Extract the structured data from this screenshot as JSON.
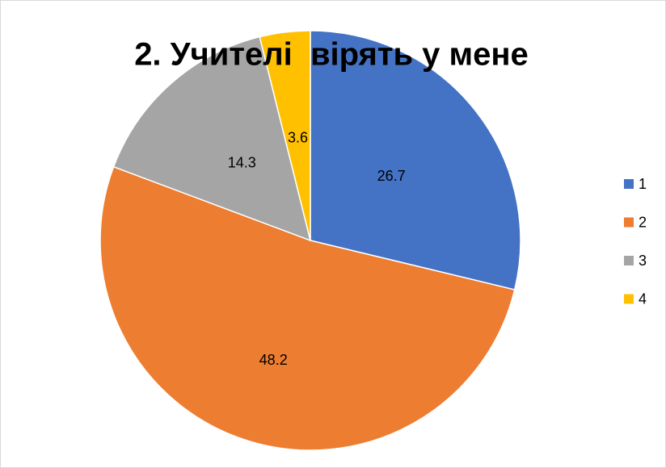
{
  "chart_data": {
    "type": "pie",
    "title": "2. Учителі  вірять у мене",
    "categories": [
      "1",
      "2",
      "3",
      "4"
    ],
    "values": [
      26.7,
      48.2,
      14.3,
      3.6
    ],
    "colors": [
      "#4472c4",
      "#ed7d31",
      "#a5a5a5",
      "#ffc000"
    ],
    "legend": "right"
  }
}
